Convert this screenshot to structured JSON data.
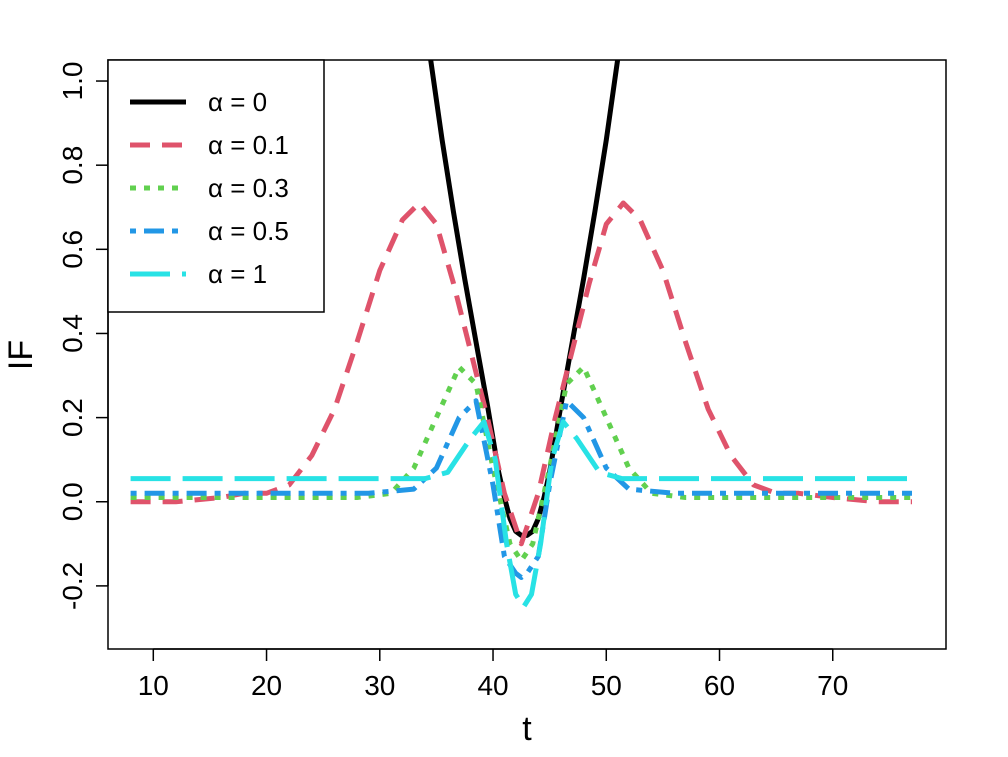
{
  "chart_data": {
    "type": "line",
    "title": "",
    "xlabel": "t",
    "ylabel": "IF",
    "xlim": [
      6,
      80
    ],
    "ylim": [
      -0.35,
      1.05
    ],
    "xticks": [
      10,
      20,
      30,
      40,
      50,
      60,
      70
    ],
    "yticks": [
      -0.2,
      0.0,
      0.2,
      0.4,
      0.6,
      0.8,
      1.0
    ],
    "xtick_labels": [
      "10",
      "20",
      "30",
      "40",
      "50",
      "60",
      "70"
    ],
    "ytick_labels": [
      "-0.2",
      "0.0",
      "0.2",
      "0.4",
      "0.6",
      "0.8",
      "1.0"
    ],
    "grid": false,
    "legend_position": "top-left",
    "series": [
      {
        "name": "α = 0",
        "color": "#000000",
        "dash": "solid",
        "x": [
          34.5,
          35.5,
          36.5,
          37.5,
          38.5,
          39.5,
          40.5,
          41.0,
          41.5,
          42.0,
          42.5,
          43.0,
          43.5,
          44.0,
          44.5,
          45.0,
          46.0,
          47.0,
          48.0,
          49.0,
          50.0,
          51.0
        ],
        "y": [
          1.05,
          0.86,
          0.69,
          0.53,
          0.38,
          0.23,
          0.07,
          0.01,
          -0.04,
          -0.07,
          -0.08,
          -0.08,
          -0.07,
          -0.04,
          0.01,
          0.07,
          0.23,
          0.38,
          0.53,
          0.69,
          0.86,
          1.05
        ]
      },
      {
        "name": "α = 0.1",
        "color": "#df536b",
        "dash": "dashed",
        "x": [
          8,
          12,
          16,
          18,
          20,
          22,
          24,
          26,
          28,
          30,
          32,
          33.5,
          35,
          36.5,
          38,
          39.5,
          41,
          42.5,
          44,
          45.5,
          47,
          48.5,
          50,
          51.5,
          53,
          55,
          57,
          59,
          61,
          63,
          65,
          67,
          70,
          74,
          77
        ],
        "y": [
          0.0,
          0.0,
          0.01,
          0.02,
          0.02,
          0.04,
          0.11,
          0.22,
          0.38,
          0.55,
          0.67,
          0.71,
          0.66,
          0.52,
          0.36,
          0.2,
          0.02,
          -0.1,
          0.02,
          0.2,
          0.36,
          0.52,
          0.66,
          0.71,
          0.67,
          0.55,
          0.38,
          0.22,
          0.11,
          0.04,
          0.02,
          0.02,
          0.01,
          0.0,
          0.0
        ]
      },
      {
        "name": "α = 0.3",
        "color": "#61d04f",
        "dash": "dotted",
        "x": [
          8,
          15,
          22,
          28,
          31,
          33,
          35,
          37,
          38.5,
          40,
          41.5,
          42.5,
          43.5,
          45,
          46.5,
          48,
          50,
          52,
          54,
          57,
          63,
          70,
          77
        ],
        "y": [
          0.01,
          0.01,
          0.01,
          0.01,
          0.02,
          0.08,
          0.2,
          0.32,
          0.28,
          0.08,
          -0.1,
          -0.14,
          -0.1,
          0.08,
          0.28,
          0.32,
          0.2,
          0.08,
          0.02,
          0.01,
          0.01,
          0.01,
          0.01
        ]
      },
      {
        "name": "α = 0.5",
        "color": "#2297e6",
        "dash": "dotdash",
        "x": [
          8,
          15,
          22,
          29,
          33,
          35,
          37,
          38.5,
          40,
          41,
          42,
          42.5,
          43,
          44,
          45,
          46.5,
          48,
          50,
          52,
          56,
          63,
          70,
          77
        ],
        "y": [
          0.02,
          0.02,
          0.02,
          0.02,
          0.03,
          0.08,
          0.2,
          0.24,
          0.04,
          -0.13,
          -0.17,
          -0.18,
          -0.17,
          -0.13,
          0.04,
          0.24,
          0.2,
          0.08,
          0.03,
          0.02,
          0.02,
          0.02,
          0.02
        ]
      },
      {
        "name": "α = 1",
        "color": "#28e2e5",
        "dash": "longdash",
        "x": [
          8,
          20,
          30,
          34,
          36,
          38,
          39.2,
          40.2,
          41.2,
          42,
          42.7,
          43.4,
          44.2,
          45.2,
          46.2,
          47.4,
          49.4,
          51.4,
          55,
          65,
          77
        ],
        "y": [
          0.055,
          0.055,
          0.055,
          0.055,
          0.07,
          0.15,
          0.19,
          0.1,
          -0.1,
          -0.22,
          -0.25,
          -0.22,
          -0.1,
          0.1,
          0.19,
          0.15,
          0.07,
          0.055,
          0.055,
          0.055,
          0.055
        ]
      }
    ]
  }
}
